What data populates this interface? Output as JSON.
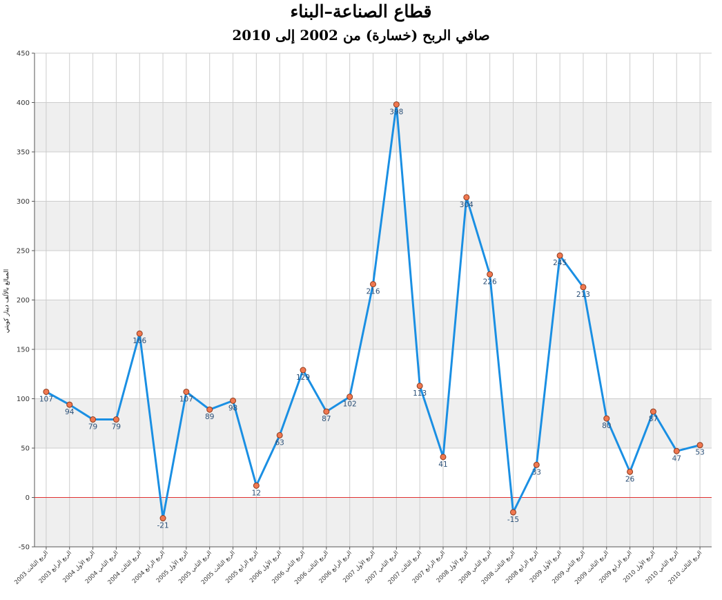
{
  "colors": {
    "line": "#1a8fe3",
    "marker_fill": "#f07850",
    "marker_stroke": "#8a3a1e",
    "zero_line": "#e03030",
    "band": "#efefef",
    "grid": "#cccccc",
    "data_label": "#2a4f77"
  },
  "chart_data": {
    "type": "line",
    "title": "قطاع الصناعة–البناء",
    "subtitle": "صافي الربح (خسارة) من 2002 إلى 2010",
    "xlabel": "",
    "ylabel": "المبالغ بالألف دينار كويتي",
    "ylim": [
      -50,
      450
    ],
    "yticks": [
      -50,
      0,
      50,
      100,
      150,
      200,
      250,
      300,
      350,
      400,
      450
    ],
    "grid": true,
    "legend": "none",
    "categories": [
      "الربع الثالث 2003",
      "الربع الرابع 2003",
      "الربع الأول 2004",
      "الربع الثاني 2004",
      "الربع الثالث 2004",
      "الربع الرابع 2004",
      "الربع الأول 2005",
      "الربع الثاني 2005",
      "الربع الثالث 2005",
      "الربع الرابع 2005",
      "الربع الأول 2006",
      "الربع الثاني 2006",
      "الربع الثالث 2006",
      "الربع الرابع 2006",
      "الربع الأول 2007",
      "الربع الثاني 2007",
      "الربع الثالث 2007",
      "الربع الرابع 2007",
      "الربع الأول 2008",
      "الربع الثاني 2008",
      "الربع الثالث 2008",
      "الربع الرابع 2008",
      "الربع الأول 2009",
      "الربع الثاني 2009",
      "الربع الثالث 2009",
      "الربع الرابع 2009",
      "الربع الأول 2010",
      "الربع الثاني 2010",
      "الربع الثالث 2010"
    ],
    "values": [
      107,
      94,
      79,
      79,
      166,
      -21,
      107,
      89,
      98,
      12,
      63,
      129,
      87,
      102,
      216,
      398,
      113,
      41,
      304,
      226,
      -15,
      33,
      245,
      213,
      80,
      26,
      87,
      47,
      53
    ]
  }
}
